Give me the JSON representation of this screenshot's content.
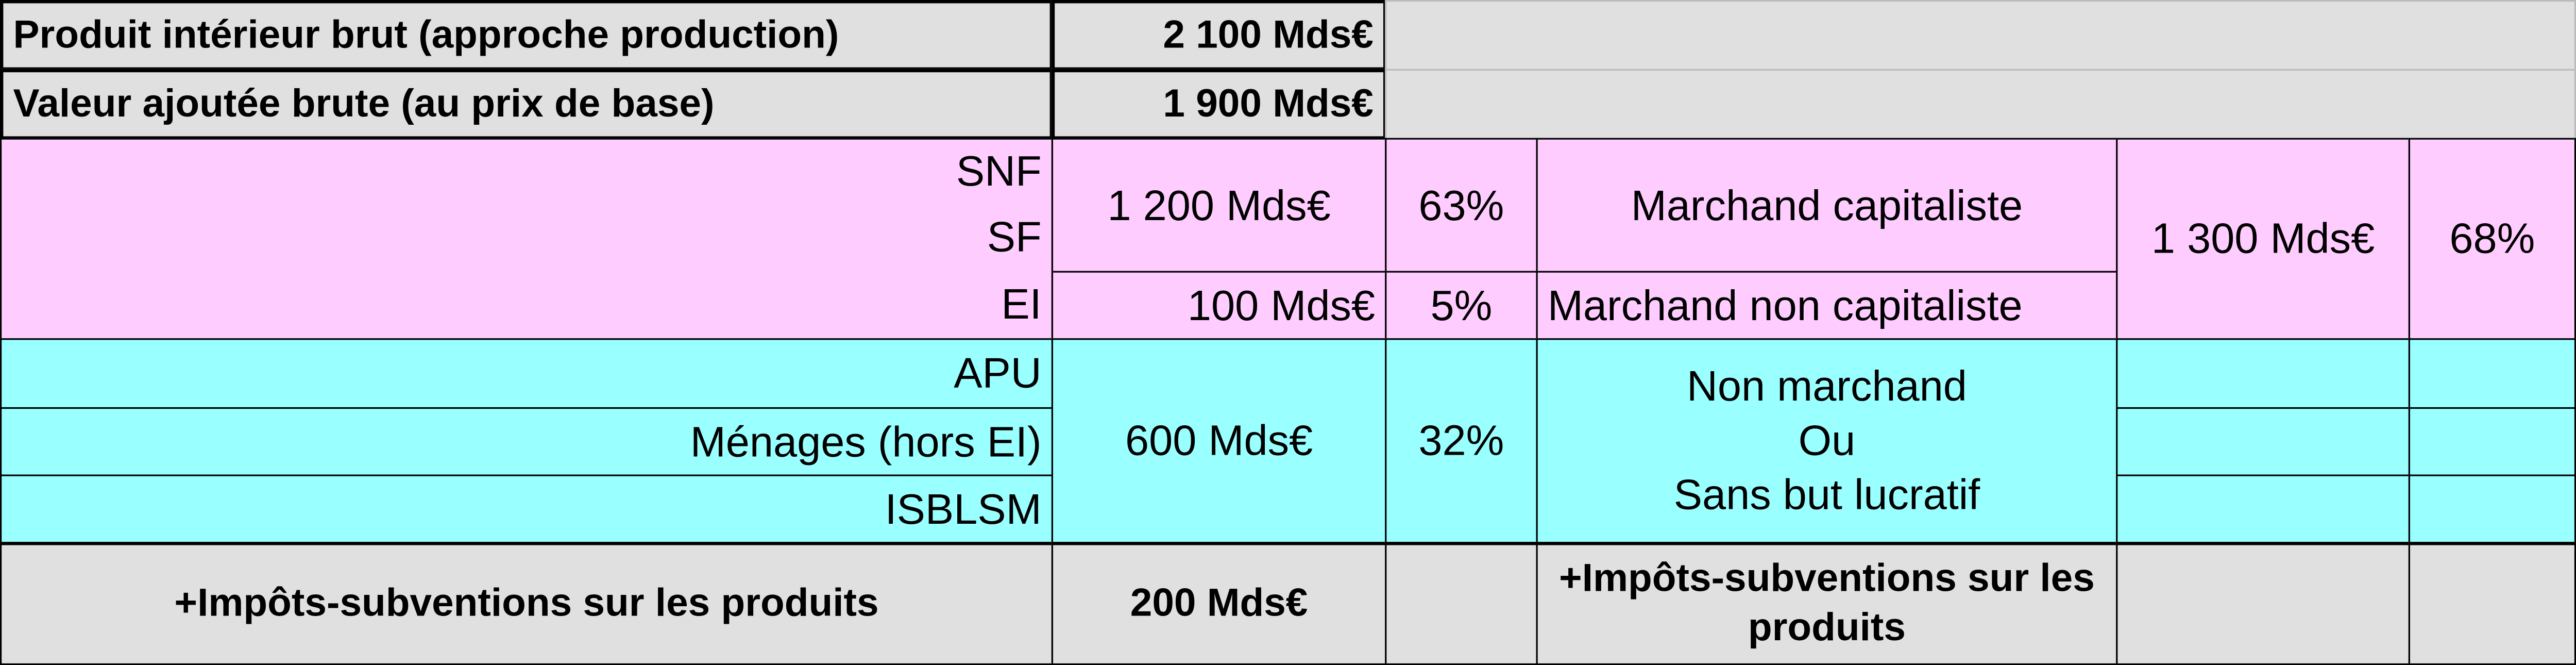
{
  "table": {
    "pib": {
      "label": "Produit intérieur brut (approche production)",
      "value": "2 100 Mds€"
    },
    "vab": {
      "label": "Valeur ajoutée brute (au prix de base)",
      "value": "1 900 Mds€"
    },
    "sectors": [
      "SNF",
      "SF",
      "EI",
      "APU",
      "Ménages (hors EI)",
      "ISBLSM"
    ],
    "snf_sf": {
      "value": "1 200 Mds€",
      "share": "63%",
      "category": "Marchand capitaliste"
    },
    "ei": {
      "value": "100 Mds€",
      "share": "5%",
      "category": "Marchand non capitaliste"
    },
    "marchand": {
      "value": "1 300 Mds€",
      "share": "68%"
    },
    "non_marchand": {
      "value": "600 Mds€",
      "share": "32%",
      "category": [
        "Non marchand",
        "Ou",
        "Sans but lucratif"
      ]
    },
    "impots": {
      "label": "+Impôts-subventions sur les produits",
      "value": "200 Mds€",
      "category": "+Impôts-subventions sur les produits"
    }
  }
}
